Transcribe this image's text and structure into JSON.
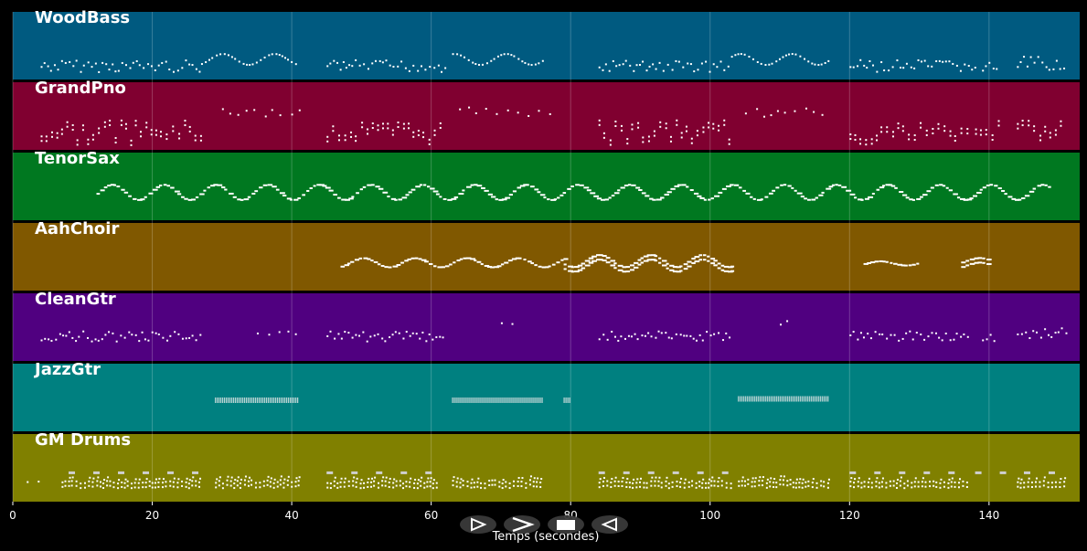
{
  "chart_data": {
    "type": "piano-roll",
    "xlabel": "Temps (secondes)",
    "xlim": [
      0,
      153
    ],
    "x_ticks": [
      0,
      20,
      40,
      60,
      80,
      100,
      120,
      140
    ],
    "grid": true,
    "tracks": [
      {
        "name": "WoodBass",
        "color": "#005a80",
        "segments": [
          {
            "start": 4,
            "end": 27,
            "pitch_lo": 0.12,
            "pitch_hi": 0.3,
            "style": "dotted"
          },
          {
            "start": 27,
            "end": 41,
            "pitch_lo": 0.22,
            "pitch_hi": 0.4,
            "style": "wavy"
          },
          {
            "start": 45,
            "end": 62,
            "pitch_lo": 0.12,
            "pitch_hi": 0.3,
            "style": "dotted"
          },
          {
            "start": 63,
            "end": 76,
            "pitch_lo": 0.22,
            "pitch_hi": 0.4,
            "style": "wavy"
          },
          {
            "start": 84,
            "end": 103,
            "pitch_lo": 0.12,
            "pitch_hi": 0.3,
            "style": "dotted"
          },
          {
            "start": 103,
            "end": 117,
            "pitch_lo": 0.22,
            "pitch_hi": 0.4,
            "style": "wavy"
          },
          {
            "start": 120,
            "end": 138,
            "pitch_lo": 0.12,
            "pitch_hi": 0.3,
            "style": "dotted"
          },
          {
            "start": 139,
            "end": 141,
            "pitch_lo": 0.12,
            "pitch_hi": 0.3,
            "style": "dotted"
          },
          {
            "start": 144,
            "end": 151,
            "pitch_lo": 0.15,
            "pitch_hi": 0.35,
            "style": "dotted"
          }
        ]
      },
      {
        "name": "GrandPno",
        "color": "#800030",
        "segments": [
          {
            "start": 4,
            "end": 27,
            "pitch_lo": 0.15,
            "pitch_hi": 0.45,
            "style": "chords"
          },
          {
            "start": 30,
            "end": 42,
            "pitch_lo": 0.5,
            "pitch_hi": 0.65,
            "style": "sparse"
          },
          {
            "start": 45,
            "end": 62,
            "pitch_lo": 0.15,
            "pitch_hi": 0.45,
            "style": "chords"
          },
          {
            "start": 64,
            "end": 77,
            "pitch_lo": 0.5,
            "pitch_hi": 0.65,
            "style": "sparse"
          },
          {
            "start": 84,
            "end": 103,
            "pitch_lo": 0.15,
            "pitch_hi": 0.45,
            "style": "chords"
          },
          {
            "start": 105,
            "end": 117,
            "pitch_lo": 0.5,
            "pitch_hi": 0.65,
            "style": "sparse"
          },
          {
            "start": 120,
            "end": 137,
            "pitch_lo": 0.15,
            "pitch_hi": 0.45,
            "style": "chords"
          },
          {
            "start": 138,
            "end": 142,
            "pitch_lo": 0.15,
            "pitch_hi": 0.45,
            "style": "chords"
          },
          {
            "start": 144,
            "end": 151,
            "pitch_lo": 0.15,
            "pitch_hi": 0.45,
            "style": "chords"
          }
        ]
      },
      {
        "name": "TenorSax",
        "color": "#007820",
        "segments": [
          {
            "start": 12,
            "end": 149,
            "pitch_lo": 0.3,
            "pitch_hi": 0.55,
            "style": "melody"
          }
        ]
      },
      {
        "name": "AahChoir",
        "color": "#805800",
        "segments": [
          {
            "start": 47,
            "end": 79,
            "pitch_lo": 0.35,
            "pitch_hi": 0.5,
            "style": "melody"
          },
          {
            "start": 79,
            "end": 103,
            "pitch_lo": 0.35,
            "pitch_hi": 0.55,
            "style": "stacked"
          },
          {
            "start": 122,
            "end": 130,
            "pitch_lo": 0.38,
            "pitch_hi": 0.45,
            "style": "melody"
          },
          {
            "start": 136,
            "end": 140,
            "pitch_lo": 0.4,
            "pitch_hi": 0.5,
            "style": "stacked"
          }
        ]
      },
      {
        "name": "CleanGtr",
        "color": "#500080",
        "segments": [
          {
            "start": 4,
            "end": 27,
            "pitch_lo": 0.3,
            "pitch_hi": 0.45,
            "style": "dotted"
          },
          {
            "start": 35,
            "end": 41,
            "pitch_lo": 0.4,
            "pitch_hi": 0.45,
            "style": "sparse"
          },
          {
            "start": 45,
            "end": 62,
            "pitch_lo": 0.3,
            "pitch_hi": 0.45,
            "style": "dotted"
          },
          {
            "start": 70,
            "end": 72,
            "pitch_lo": 0.55,
            "pitch_hi": 0.6,
            "style": "sparse"
          },
          {
            "start": 84,
            "end": 103,
            "pitch_lo": 0.3,
            "pitch_hi": 0.45,
            "style": "dotted"
          },
          {
            "start": 110,
            "end": 112,
            "pitch_lo": 0.55,
            "pitch_hi": 0.62,
            "style": "sparse"
          },
          {
            "start": 120,
            "end": 137,
            "pitch_lo": 0.3,
            "pitch_hi": 0.45,
            "style": "dotted"
          },
          {
            "start": 139,
            "end": 141,
            "pitch_lo": 0.3,
            "pitch_hi": 0.45,
            "style": "dotted"
          },
          {
            "start": 144,
            "end": 151,
            "pitch_lo": 0.32,
            "pitch_hi": 0.5,
            "style": "dotted"
          }
        ]
      },
      {
        "name": "JazzGtr",
        "color": "#008080",
        "segments": [
          {
            "start": 29,
            "end": 41,
            "pitch_lo": 0.42,
            "pitch_hi": 0.5,
            "style": "strum"
          },
          {
            "start": 63,
            "end": 76,
            "pitch_lo": 0.42,
            "pitch_hi": 0.5,
            "style": "strum"
          },
          {
            "start": 79,
            "end": 80,
            "pitch_lo": 0.42,
            "pitch_hi": 0.5,
            "style": "strum"
          },
          {
            "start": 104,
            "end": 117,
            "pitch_lo": 0.44,
            "pitch_hi": 0.52,
            "style": "strum"
          }
        ]
      },
      {
        "name": "GM Drums",
        "color": "#808000",
        "segments": [
          {
            "start": 2,
            "end": 5,
            "pitch_lo": 0.3,
            "pitch_hi": 0.32,
            "style": "sparse"
          },
          {
            "start": 8,
            "end": 27,
            "pitch_lo": 0.42,
            "pitch_hi": 0.44,
            "style": "dashes"
          },
          {
            "start": 7,
            "end": 27,
            "pitch_lo": 0.28,
            "pitch_hi": 0.32,
            "style": "drums"
          },
          {
            "start": 29,
            "end": 41,
            "pitch_lo": 0.28,
            "pitch_hi": 0.34,
            "style": "drums"
          },
          {
            "start": 45,
            "end": 61,
            "pitch_lo": 0.42,
            "pitch_hi": 0.44,
            "style": "dashes"
          },
          {
            "start": 45,
            "end": 61,
            "pitch_lo": 0.28,
            "pitch_hi": 0.32,
            "style": "drums"
          },
          {
            "start": 63,
            "end": 76,
            "pitch_lo": 0.28,
            "pitch_hi": 0.34,
            "style": "drums"
          },
          {
            "start": 84,
            "end": 103,
            "pitch_lo": 0.42,
            "pitch_hi": 0.44,
            "style": "dashes"
          },
          {
            "start": 84,
            "end": 103,
            "pitch_lo": 0.28,
            "pitch_hi": 0.32,
            "style": "drums"
          },
          {
            "start": 104,
            "end": 117,
            "pitch_lo": 0.28,
            "pitch_hi": 0.34,
            "style": "drums"
          },
          {
            "start": 120,
            "end": 137,
            "pitch_lo": 0.42,
            "pitch_hi": 0.44,
            "style": "dashes"
          },
          {
            "start": 120,
            "end": 137,
            "pitch_lo": 0.28,
            "pitch_hi": 0.32,
            "style": "drums"
          },
          {
            "start": 138,
            "end": 142,
            "pitch_lo": 0.42,
            "pitch_hi": 0.44,
            "style": "dashes"
          },
          {
            "start": 145,
            "end": 149,
            "pitch_lo": 0.42,
            "pitch_hi": 0.44,
            "style": "dashes"
          },
          {
            "start": 144,
            "end": 151,
            "pitch_lo": 0.28,
            "pitch_hi": 0.32,
            "style": "drums"
          }
        ]
      }
    ]
  },
  "controls": {
    "buttons": [
      {
        "name": "play-button",
        "icon": "play-icon"
      },
      {
        "name": "forward-button",
        "icon": "forward-icon"
      },
      {
        "name": "stop-button",
        "icon": "stop-icon"
      },
      {
        "name": "rewind-button",
        "icon": "rewind-icon"
      }
    ]
  }
}
